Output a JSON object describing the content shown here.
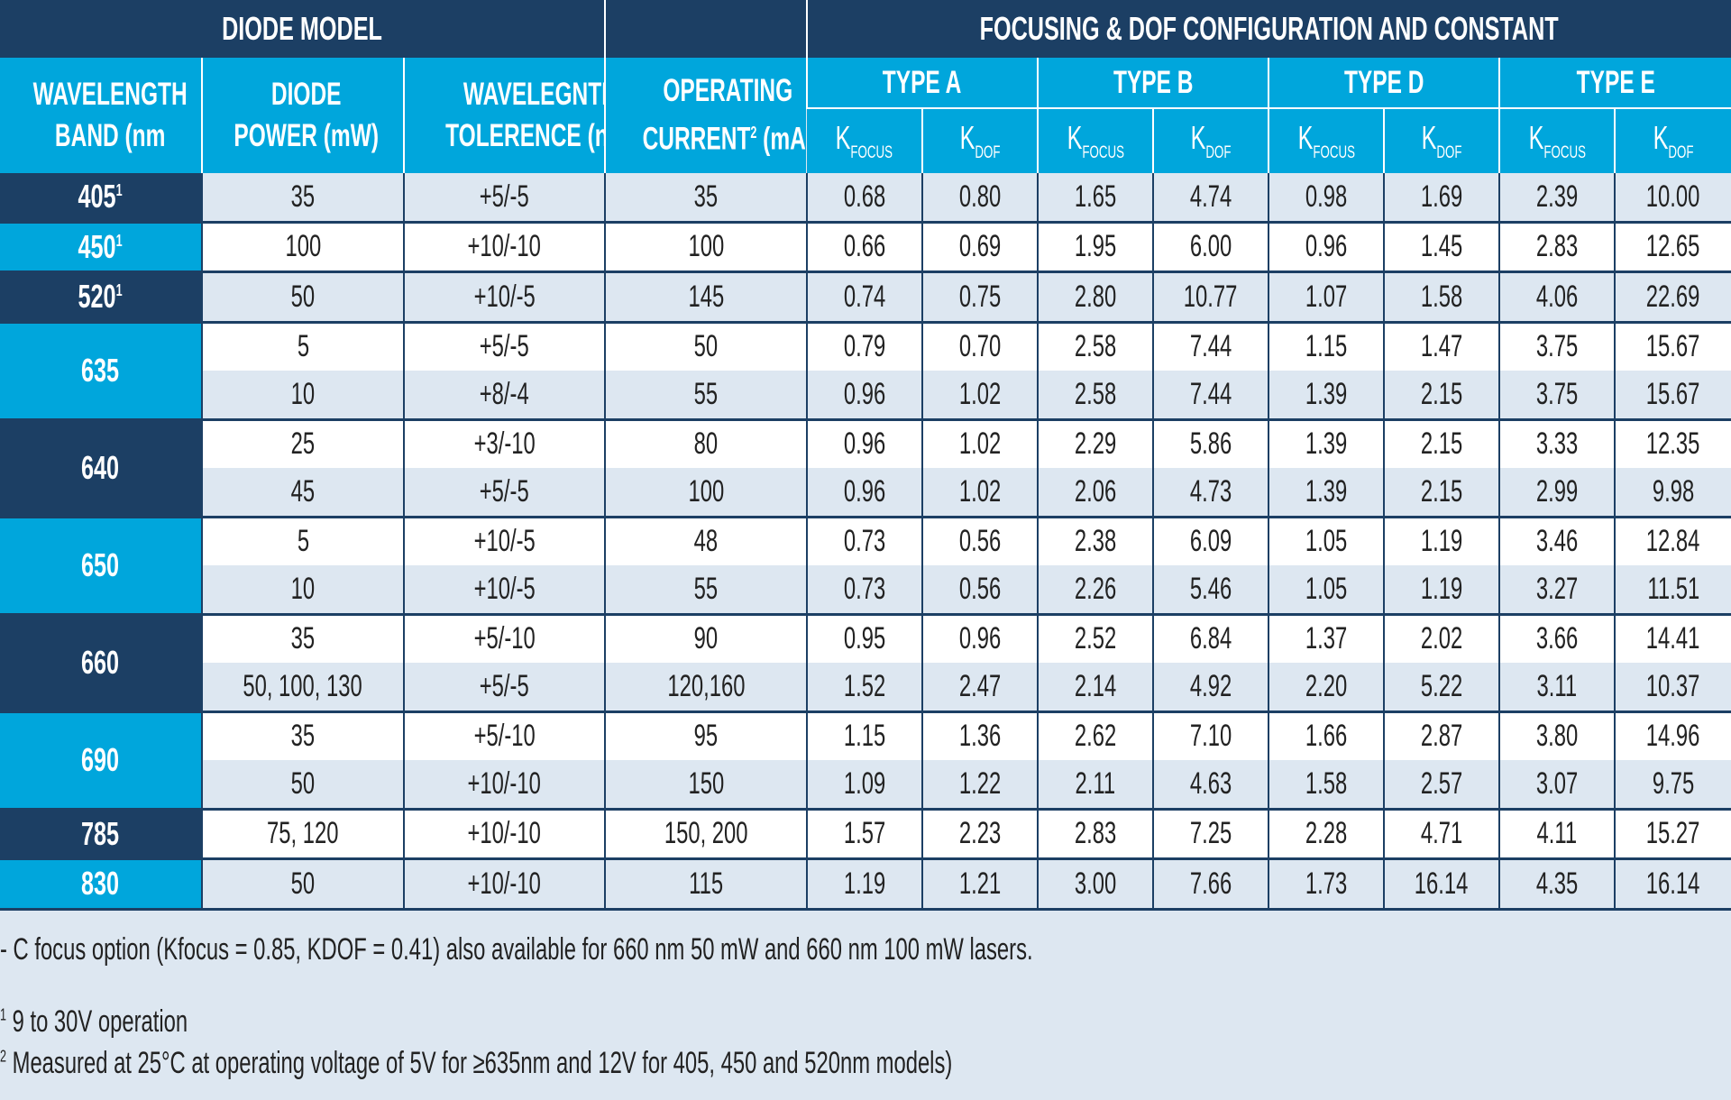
{
  "header": {
    "diode_model": "DIODE MODEL",
    "focusing": "FOCUSING & DOF CONFIGURATION AND CONSTANT",
    "wavelength_band": [
      "WAVELENGTH",
      "BAND (nm"
    ],
    "diode_power": [
      "DIODE",
      "POWER (mW)"
    ],
    "wavelength_tolerance": [
      "WAVELEGNTH",
      "TOLERENCE (nm)"
    ],
    "operating_current": [
      "OPERATING",
      "CURRENT",
      "2",
      " (mA)"
    ],
    "types": [
      "TYPE A",
      "TYPE B",
      "TYPE D",
      "TYPE E"
    ],
    "k": "K",
    "k_focus_sub": "FOCUS",
    "k_dof_sub": "DOF"
  },
  "colors": {
    "dark": "#1c3f64",
    "cyan": "#00a6dc",
    "light_row": "#dde7f1"
  },
  "groups": [
    {
      "band": "405",
      "sup": "1",
      "color": "dark",
      "rows": [
        [
          "35",
          "+5/-5",
          "35",
          "0.68",
          "0.80",
          "1.65",
          "4.74",
          "0.98",
          "1.69",
          "2.39",
          "10.00"
        ]
      ]
    },
    {
      "band": "450",
      "sup": "1",
      "color": "cyan",
      "rows": [
        [
          "100",
          "+10/-10",
          "100",
          "0.66",
          "0.69",
          "1.95",
          "6.00",
          "0.96",
          "1.45",
          "2.83",
          "12.65"
        ]
      ]
    },
    {
      "band": "520",
      "sup": "1",
      "color": "dark",
      "rows": [
        [
          "50",
          "+10/-5",
          "145",
          "0.74",
          "0.75",
          "2.80",
          "10.77",
          "1.07",
          "1.58",
          "4.06",
          "22.69"
        ]
      ]
    },
    {
      "band": "635",
      "sup": "",
      "color": "cyan",
      "rows": [
        [
          "5",
          "+5/-5",
          "50",
          "0.79",
          "0.70",
          "2.58",
          "7.44",
          "1.15",
          "1.47",
          "3.75",
          "15.67"
        ],
        [
          "10",
          "+8/-4",
          "55",
          "0.96",
          "1.02",
          "2.58",
          "7.44",
          "1.39",
          "2.15",
          "3.75",
          "15.67"
        ]
      ]
    },
    {
      "band": "640",
      "sup": "",
      "color": "dark",
      "rows": [
        [
          "25",
          "+3/-10",
          "80",
          "0.96",
          "1.02",
          "2.29",
          "5.86",
          "1.39",
          "2.15",
          "3.33",
          "12.35"
        ],
        [
          "45",
          "+5/-5",
          "100",
          "0.96",
          "1.02",
          "2.06",
          "4.73",
          "1.39",
          "2.15",
          "2.99",
          "9.98"
        ]
      ]
    },
    {
      "band": "650",
      "sup": "",
      "color": "cyan",
      "rows": [
        [
          "5",
          "+10/-5",
          "48",
          "0.73",
          "0.56",
          "2.38",
          "6.09",
          "1.05",
          "1.19",
          "3.46",
          "12.84"
        ],
        [
          "10",
          "+10/-5",
          "55",
          "0.73",
          "0.56",
          "2.26",
          "5.46",
          "1.05",
          "1.19",
          "3.27",
          "11.51"
        ]
      ]
    },
    {
      "band": "660",
      "sup": "",
      "color": "dark",
      "rows": [
        [
          "35",
          "+5/-10",
          "90",
          "0.95",
          "0.96",
          "2.52",
          "6.84",
          "1.37",
          "2.02",
          "3.66",
          "14.41"
        ],
        [
          "50, 100, 130",
          "+5/-5",
          "120,160",
          "1.52",
          "2.47",
          "2.14",
          "4.92",
          "2.20",
          "5.22",
          "3.11",
          "10.37"
        ]
      ]
    },
    {
      "band": "690",
      "sup": "",
      "color": "cyan",
      "rows": [
        [
          "35",
          "+5/-10",
          "95",
          "1.15",
          "1.36",
          "2.62",
          "7.10",
          "1.66",
          "2.87",
          "3.80",
          "14.96"
        ],
        [
          "50",
          "+10/-10",
          "150",
          "1.09",
          "1.22",
          "2.11",
          "4.63",
          "1.58",
          "2.57",
          "3.07",
          "9.75"
        ]
      ]
    },
    {
      "band": "785",
      "sup": "",
      "color": "dark",
      "rows": [
        [
          "75, 120",
          "+10/-10",
          "150, 200",
          "1.57",
          "2.23",
          "2.83",
          "7.25",
          "2.28",
          "4.71",
          "4.11",
          "15.27"
        ]
      ]
    },
    {
      "band": "830",
      "sup": "",
      "color": "cyan",
      "rows": [
        [
          "50",
          "+10/-10",
          "115",
          "1.19",
          "1.21",
          "3.00",
          "7.66",
          "1.73",
          "16.14",
          "4.35",
          "16.14"
        ]
      ]
    }
  ],
  "notes": {
    "c_focus": "- C focus option (Kfocus = 0.85, KDOF = 0.41)  also available for 660 nm 50 mW and 660 nm 100 mW lasers.",
    "n1_mark": "1",
    "n1": " 9 to 30V operation",
    "n2_mark": "2",
    "n2": " Measured at 25°C at operating voltage of 5V for ≥635nm and 12V for 405, 450 and 520nm models)"
  }
}
